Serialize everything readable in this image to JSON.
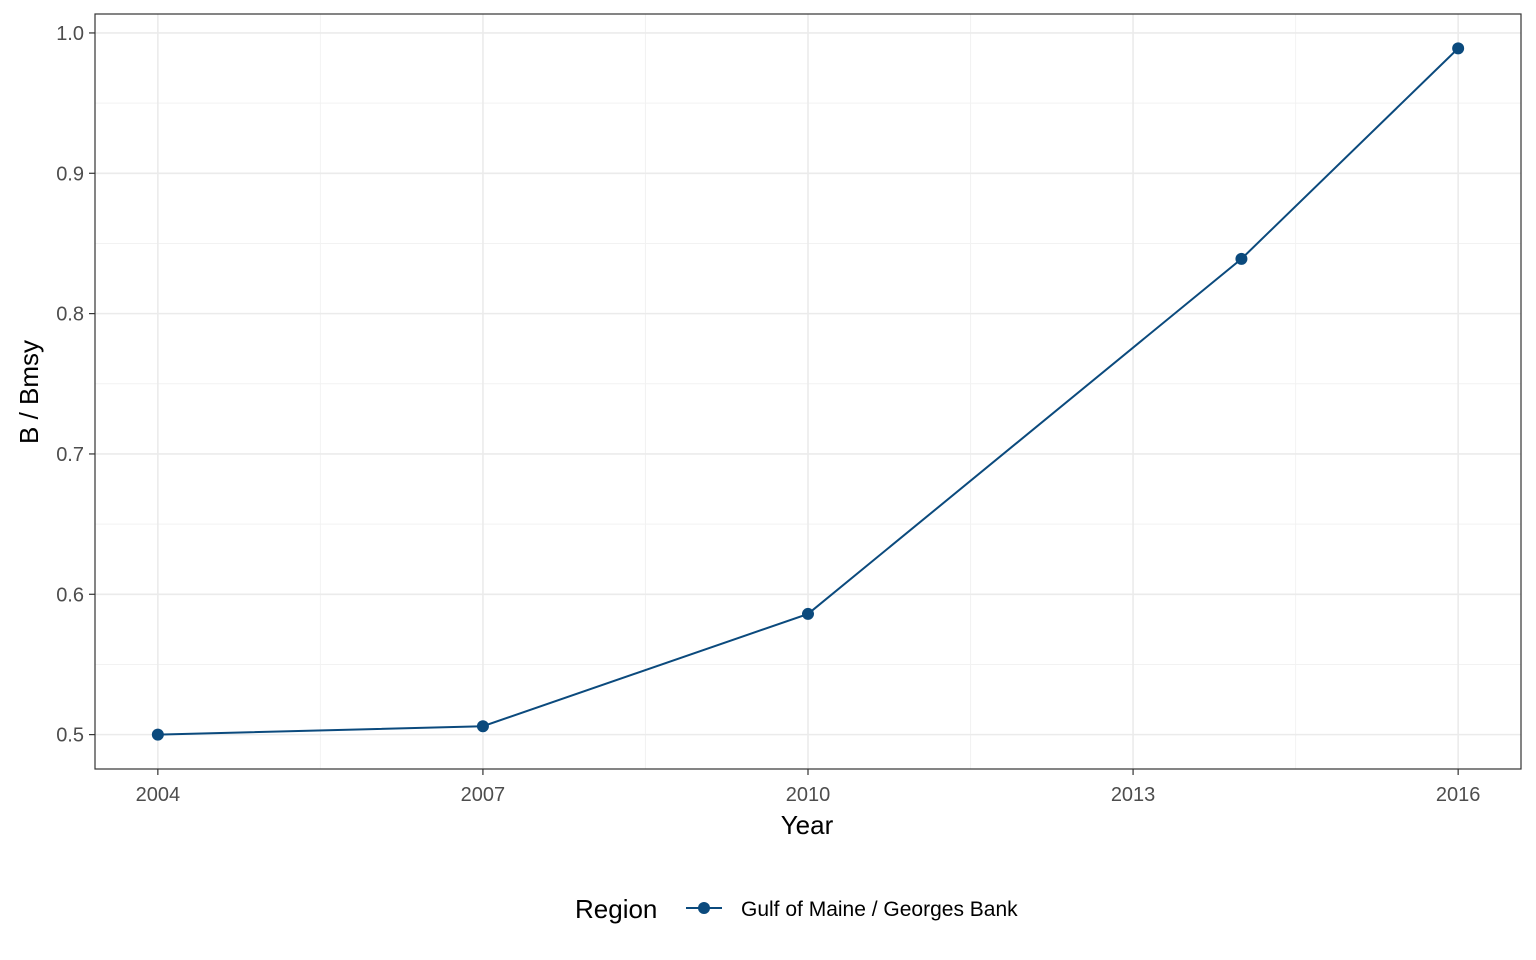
{
  "chart_data": {
    "type": "line",
    "title": "",
    "xlabel": "Year",
    "ylabel": "B / Bmsy",
    "x_ticks": [
      "2004",
      "2007",
      "2010",
      "2013",
      "2016"
    ],
    "y_ticks": [
      "0.5",
      "0.6",
      "0.7",
      "0.8",
      "0.9",
      "1.0"
    ],
    "xlim": [
      2003.42,
      2016.58
    ],
    "ylim": [
      0.4755,
      1.0135
    ],
    "grid": true,
    "legend": {
      "title": "Region",
      "position": "bottom"
    },
    "series": [
      {
        "name": "Gulf of Maine / Georges Bank",
        "color": "#0B4A7D",
        "x": [
          2004,
          2007,
          2010,
          2014,
          2016
        ],
        "y": [
          0.5,
          0.506,
          0.586,
          0.839,
          0.989
        ]
      }
    ]
  }
}
